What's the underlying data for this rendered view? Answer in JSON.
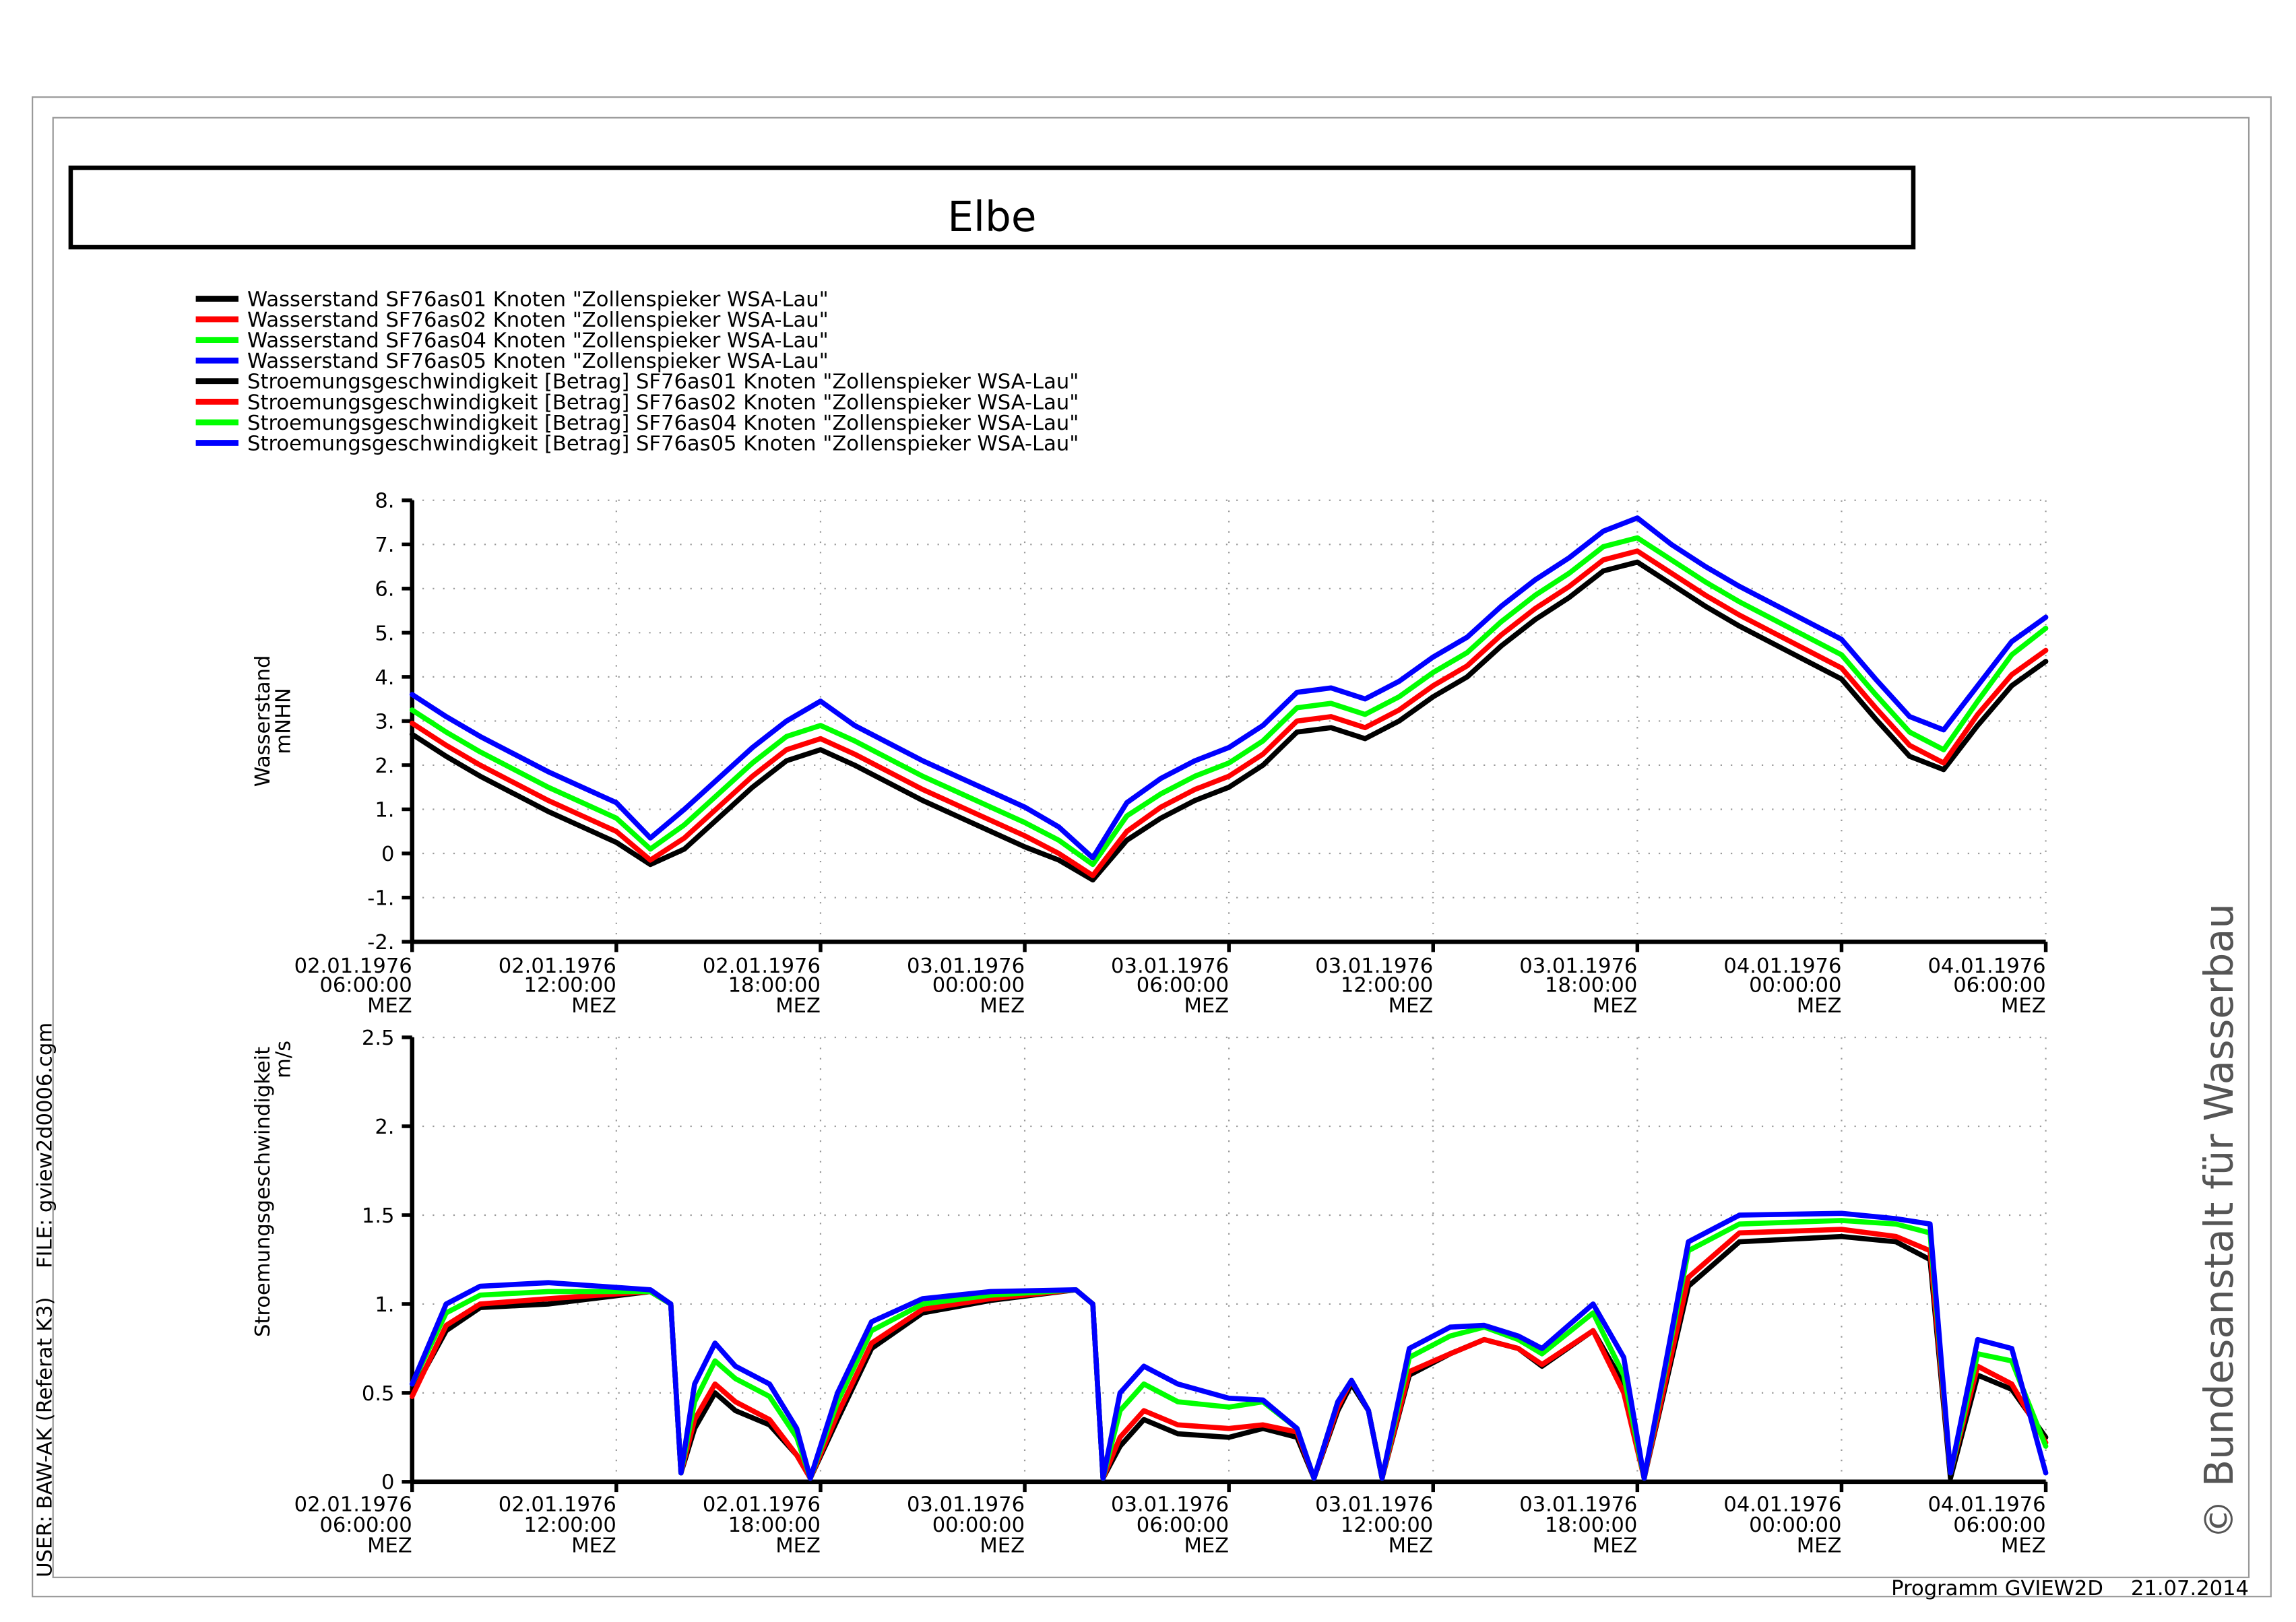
{
  "title": "Elbe",
  "user": "USER: BAW-AK (Referat K3)",
  "file": "FILE: gview2d0006.cgm",
  "copyright": "© Bundesanstalt für Wasserbau",
  "program": "Programm GVIEW2D",
  "date": "21.07.2014",
  "chart_data": [
    {
      "type": "line",
      "y_label": "Wasserstand",
      "y_unit": "mNHN",
      "grid": true,
      "xlim": [
        "1976-01-02T06:00:00",
        "1976-01-04T06:00:00"
      ],
      "xticks": [
        {
          "value": "1976-01-02T06:00:00",
          "label": "02.01.1976\n06:00:00\nMEZ"
        },
        {
          "value": "1976-01-02T12:00:00",
          "label": "02.01.1976\n12:00:00\nMEZ"
        },
        {
          "value": "1976-01-02T18:00:00",
          "label": "02.01.1976\n18:00:00\nMEZ"
        },
        {
          "value": "1976-01-03T00:00:00",
          "label": "03.01.1976\n00:00:00\nMEZ"
        },
        {
          "value": "1976-01-03T06:00:00",
          "label": "03.01.1976\n06:00:00\nMEZ"
        },
        {
          "value": "1976-01-03T12:00:00",
          "label": "03.01.1976\n12:00:00\nMEZ"
        },
        {
          "value": "1976-01-03T18:00:00",
          "label": "03.01.1976\n18:00:00\nMEZ"
        },
        {
          "value": "1976-01-04T00:00:00",
          "label": "04.01.1976\n00:00:00\nMEZ"
        },
        {
          "value": "1976-01-04T06:00:00",
          "label": "04.01.1976\n06:00:00\nMEZ"
        }
      ],
      "ylim": [
        -2,
        8
      ],
      "yticks": [
        {
          "value": 8,
          "label": "8."
        },
        {
          "value": 7,
          "label": "7."
        },
        {
          "value": 6,
          "label": "6."
        },
        {
          "value": 5,
          "label": "5."
        },
        {
          "value": 4,
          "label": "4."
        },
        {
          "value": 3,
          "label": "3."
        },
        {
          "value": 2,
          "label": "2."
        },
        {
          "value": 1,
          "label": "1."
        },
        0,
        {
          "value": -1,
          "label": "-1."
        },
        {
          "value": -2,
          "label": "-2."
        }
      ],
      "x": [
        "1976-01-02T06:00:00",
        "1976-01-02T07:00:00",
        "1976-01-02T08:00:00",
        "1976-01-02T09:00:00",
        "1976-01-02T10:00:00",
        "1976-01-02T11:00:00",
        "1976-01-02T12:00:00",
        "1976-01-02T13:00:00",
        "1976-01-02T14:00:00",
        "1976-01-02T15:00:00",
        "1976-01-02T16:00:00",
        "1976-01-02T17:00:00",
        "1976-01-02T18:00:00",
        "1976-01-02T19:00:00",
        "1976-01-02T20:00:00",
        "1976-01-02T21:00:00",
        "1976-01-02T22:00:00",
        "1976-01-02T23:00:00",
        "1976-01-03T00:00:00",
        "1976-01-03T01:00:00",
        "1976-01-03T02:00:00",
        "1976-01-03T03:00:00",
        "1976-01-03T04:00:00",
        "1976-01-03T05:00:00",
        "1976-01-03T06:00:00",
        "1976-01-03T07:00:00",
        "1976-01-03T08:00:00",
        "1976-01-03T09:00:00",
        "1976-01-03T10:00:00",
        "1976-01-03T11:00:00",
        "1976-01-03T12:00:00",
        "1976-01-03T13:00:00",
        "1976-01-03T14:00:00",
        "1976-01-03T15:00:00",
        "1976-01-03T16:00:00",
        "1976-01-03T17:00:00",
        "1976-01-03T18:00:00",
        "1976-01-03T19:00:00",
        "1976-01-03T20:00:00",
        "1976-01-03T21:00:00",
        "1976-01-03T22:00:00",
        "1976-01-03T23:00:00",
        "1976-01-04T00:00:00",
        "1976-01-04T01:00:00",
        "1976-01-04T02:00:00",
        "1976-01-04T03:00:00",
        "1976-01-04T04:00:00",
        "1976-01-04T05:00:00",
        "1976-01-04T06:00:00"
      ],
      "series": [
        {
          "name": "Wasserstand SF76as01 Knoten \"Zollenspieker WSA-Lau\"",
          "color": "#000000",
          "values": [
            2.7,
            2.2,
            1.75,
            1.35,
            0.95,
            0.6,
            0.25,
            -0.25,
            0.1,
            0.8,
            1.5,
            2.1,
            2.35,
            2.0,
            1.6,
            1.2,
            0.85,
            0.5,
            0.15,
            -0.15,
            -0.6,
            0.3,
            0.8,
            1.2,
            1.5,
            2.0,
            2.75,
            2.85,
            2.6,
            3.0,
            3.55,
            4.0,
            4.7,
            5.3,
            5.8,
            6.4,
            6.6,
            6.1,
            5.6,
            5.15,
            4.75,
            4.35,
            3.95,
            3.05,
            2.2,
            1.9,
            2.9,
            3.8,
            4.35
          ]
        },
        {
          "name": "Wasserstand SF76as02 Knoten \"Zollenspieker WSA-Lau\"",
          "color": "#ff0000",
          "values": [
            2.95,
            2.45,
            2.0,
            1.6,
            1.2,
            0.85,
            0.5,
            -0.15,
            0.35,
            1.05,
            1.75,
            2.35,
            2.6,
            2.25,
            1.85,
            1.45,
            1.1,
            0.75,
            0.4,
            0.0,
            -0.5,
            0.5,
            1.05,
            1.45,
            1.75,
            2.25,
            3.0,
            3.1,
            2.85,
            3.25,
            3.8,
            4.25,
            4.95,
            5.55,
            6.05,
            6.65,
            6.85,
            6.35,
            5.85,
            5.4,
            5.0,
            4.6,
            4.2,
            3.3,
            2.45,
            2.05,
            3.15,
            4.05,
            4.6
          ]
        },
        {
          "name": "Wasserstand SF76as04 Knoten \"Zollenspieker WSA-Lau\"",
          "color": "#00ff00",
          "values": [
            3.25,
            2.75,
            2.3,
            1.9,
            1.5,
            1.15,
            0.8,
            0.1,
            0.65,
            1.35,
            2.05,
            2.65,
            2.9,
            2.55,
            2.15,
            1.75,
            1.4,
            1.05,
            0.7,
            0.3,
            -0.25,
            0.85,
            1.35,
            1.75,
            2.05,
            2.55,
            3.3,
            3.4,
            3.15,
            3.55,
            4.1,
            4.55,
            5.25,
            5.85,
            6.35,
            6.95,
            7.15,
            6.65,
            6.15,
            5.7,
            5.3,
            4.9,
            4.5,
            3.6,
            2.75,
            2.35,
            3.45,
            4.5,
            5.1
          ]
        },
        {
          "name": "Wasserstand SF76as05 Knoten \"Zollenspieker WSA-Lau\"",
          "color": "#0000ff",
          "values": [
            3.6,
            3.1,
            2.65,
            2.25,
            1.85,
            1.5,
            1.15,
            0.35,
            1.0,
            1.7,
            2.4,
            3.0,
            3.45,
            2.9,
            2.5,
            2.1,
            1.75,
            1.4,
            1.05,
            0.6,
            -0.1,
            1.15,
            1.7,
            2.1,
            2.4,
            2.9,
            3.65,
            3.75,
            3.5,
            3.9,
            4.45,
            4.9,
            5.6,
            6.2,
            6.7,
            7.3,
            7.6,
            7.0,
            6.5,
            6.05,
            5.65,
            5.25,
            4.85,
            3.95,
            3.1,
            2.8,
            3.8,
            4.8,
            5.35
          ]
        }
      ]
    },
    {
      "type": "line",
      "y_label": "Stroemungsgeschwindigkeit",
      "y_unit": "m/s",
      "grid": true,
      "xlim": [
        "1976-01-02T06:00:00",
        "1976-01-04T06:00:00"
      ],
      "xticks": [
        {
          "value": "1976-01-02T06:00:00",
          "label": "02.01.1976\n06:00:00\nMEZ"
        },
        {
          "value": "1976-01-02T12:00:00",
          "label": "02.01.1976\n12:00:00\nMEZ"
        },
        {
          "value": "1976-01-02T18:00:00",
          "label": "02.01.1976\n18:00:00\nMEZ"
        },
        {
          "value": "1976-01-03T00:00:00",
          "label": "03.01.1976\n00:00:00\nMEZ"
        },
        {
          "value": "1976-01-03T06:00:00",
          "label": "03.01.1976\n06:00:00\nMEZ"
        },
        {
          "value": "1976-01-03T12:00:00",
          "label": "03.01.1976\n12:00:00\nMEZ"
        },
        {
          "value": "1976-01-03T18:00:00",
          "label": "03.01.1976\n18:00:00\nMEZ"
        },
        {
          "value": "1976-01-04T00:00:00",
          "label": "04.01.1976\n00:00:00\nMEZ"
        },
        {
          "value": "1976-01-04T06:00:00",
          "label": "04.01.1976\n06:00:00\nMEZ"
        }
      ],
      "ylim": [
        0,
        2.5
      ],
      "yticks": [
        2.5,
        {
          "value": 2,
          "label": "2."
        },
        1.5,
        {
          "value": 1,
          "label": "1."
        },
        0.5,
        0
      ],
      "x": [
        "1976-01-02T06:00:00",
        "1976-01-02T07:00:00",
        "1976-01-02T08:00:00",
        "1976-01-02T10:00:00",
        "1976-01-02T13:00:00",
        "1976-01-02T13:36:00",
        "1976-01-02T13:54:00",
        "1976-01-02T14:18:00",
        "1976-01-02T14:54:00",
        "1976-01-02T15:30:00",
        "1976-01-02T16:30:00",
        "1976-01-02T17:18:00",
        "1976-01-02T17:42:00",
        "1976-01-02T18:30:00",
        "1976-01-02T19:30:00",
        "1976-01-02T21:00:00",
        "1976-01-02T23:00:00",
        "1976-01-03T01:30:00",
        "1976-01-03T02:00:00",
        "1976-01-03T02:18:00",
        "1976-01-03T02:48:00",
        "1976-01-03T03:30:00",
        "1976-01-03T04:30:00",
        "1976-01-03T06:00:00",
        "1976-01-03T07:00:00",
        "1976-01-03T08:00:00",
        "1976-01-03T08:30:00",
        "1976-01-03T09:12:00",
        "1976-01-03T09:36:00",
        "1976-01-03T10:06:00",
        "1976-01-03T10:30:00",
        "1976-01-03T11:18:00",
        "1976-01-03T12:30:00",
        "1976-01-03T13:30:00",
        "1976-01-03T14:30:00",
        "1976-01-03T15:12:00",
        "1976-01-03T16:42:00",
        "1976-01-03T17:36:00",
        "1976-01-03T18:12:00",
        "1976-01-03T19:30:00",
        "1976-01-03T21:00:00",
        "1976-01-04T00:00:00",
        "1976-01-04T01:36:00",
        "1976-01-04T02:36:00",
        "1976-01-04T03:12:00",
        "1976-01-04T04:00:00",
        "1976-01-04T05:00:00",
        "1976-01-04T06:00:00"
      ],
      "series": [
        {
          "name": "Stroemungsgeschwindigkeit [Betrag] SF76as01 Knoten \"Zollenspieker WSA-Lau\"",
          "color": "#000000",
          "values": [
            0.5,
            0.85,
            0.98,
            1.0,
            1.07,
            1.0,
            0.05,
            0.3,
            0.5,
            0.4,
            0.32,
            0.15,
            0.02,
            0.35,
            0.75,
            0.95,
            1.02,
            1.08,
            1.0,
            0.02,
            0.2,
            0.35,
            0.27,
            0.25,
            0.3,
            0.25,
            0.02,
            0.4,
            0.55,
            0.4,
            0.02,
            0.6,
            0.72,
            0.8,
            0.75,
            0.65,
            0.85,
            0.55,
            0.02,
            1.1,
            1.35,
            1.38,
            1.35,
            1.25,
            0.02,
            0.6,
            0.52,
            0.25
          ]
        },
        {
          "name": "Stroemungsgeschwindigkeit [Betrag] SF76as02 Knoten \"Zollenspieker WSA-Lau\"",
          "color": "#ff0000",
          "values": [
            0.48,
            0.88,
            1.0,
            1.03,
            1.07,
            1.0,
            0.05,
            0.35,
            0.55,
            0.45,
            0.35,
            0.15,
            0.02,
            0.38,
            0.78,
            0.97,
            1.03,
            1.08,
            1.0,
            0.02,
            0.25,
            0.4,
            0.32,
            0.3,
            0.32,
            0.28,
            0.02,
            0.42,
            0.57,
            0.4,
            0.02,
            0.62,
            0.72,
            0.8,
            0.75,
            0.66,
            0.85,
            0.5,
            0.02,
            1.15,
            1.4,
            1.42,
            1.38,
            1.3,
            0.05,
            0.65,
            0.55,
            0.22
          ]
        },
        {
          "name": "Stroemungsgeschwindigkeit [Betrag] SF76as04 Knoten \"Zollenspieker WSA-Lau\"",
          "color": "#00ff00",
          "values": [
            0.55,
            0.95,
            1.05,
            1.07,
            1.07,
            1.0,
            0.05,
            0.45,
            0.68,
            0.58,
            0.48,
            0.25,
            0.02,
            0.45,
            0.85,
            1.0,
            1.05,
            1.08,
            1.0,
            0.02,
            0.4,
            0.55,
            0.45,
            0.42,
            0.45,
            0.3,
            0.02,
            0.45,
            0.57,
            0.4,
            0.02,
            0.7,
            0.82,
            0.87,
            0.8,
            0.72,
            0.95,
            0.6,
            0.02,
            1.3,
            1.45,
            1.47,
            1.45,
            1.4,
            0.05,
            0.72,
            0.68,
            0.2
          ]
        },
        {
          "name": "Stroemungsgeschwindigkeit [Betrag] SF76as05 Knoten \"Zollenspieker WSA-Lau\"",
          "color": "#0000ff",
          "values": [
            0.55,
            1.0,
            1.1,
            1.12,
            1.08,
            1.0,
            0.05,
            0.55,
            0.78,
            0.65,
            0.55,
            0.3,
            0.02,
            0.5,
            0.9,
            1.03,
            1.07,
            1.08,
            1.0,
            0.02,
            0.5,
            0.65,
            0.55,
            0.47,
            0.46,
            0.3,
            0.02,
            0.45,
            0.57,
            0.4,
            0.02,
            0.75,
            0.87,
            0.88,
            0.82,
            0.75,
            1.0,
            0.7,
            0.02,
            1.35,
            1.5,
            1.51,
            1.48,
            1.45,
            0.05,
            0.8,
            0.75,
            0.05
          ]
        }
      ]
    }
  ]
}
